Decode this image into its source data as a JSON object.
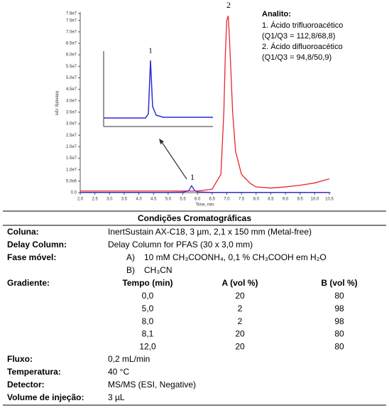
{
  "chart_data": {
    "type": "line",
    "y_label": "Intensity, cps",
    "x_label": "Time, min",
    "x": [
      2.0,
      2.5,
      3.0,
      3.5,
      4.0,
      4.5,
      5.0,
      5.5,
      5.7,
      5.8,
      5.9,
      6.0,
      6.5,
      6.8,
      6.9,
      6.95,
      7.0,
      7.05,
      7.1,
      7.2,
      7.3,
      7.5,
      7.8,
      8.0,
      8.5,
      9.0,
      9.5,
      10.0,
      10.5
    ],
    "series": [
      {
        "color": "#e8262c",
        "values": [
          700000,
          700000,
          700000,
          700000,
          700000,
          700000,
          700000,
          700000,
          700000,
          700000,
          700000,
          700000,
          1500000,
          8000000,
          35000000,
          60000000,
          75000000,
          77000000,
          65000000,
          35000000,
          18000000,
          8000000,
          4000000,
          2500000,
          2000000,
          2500000,
          3200000,
          4200000,
          6000000
        ]
      },
      {
        "color": "#2b2bd8",
        "values": [
          100000,
          100000,
          100000,
          100000,
          100000,
          100000,
          100000,
          200000,
          800000,
          3000000,
          1000000,
          300000,
          100000,
          100000,
          100000,
          100000,
          100000,
          100000,
          100000,
          100000,
          100000,
          100000,
          100000,
          100000,
          100000,
          100000,
          100000,
          100000,
          100000
        ]
      }
    ],
    "xlim": [
      2.0,
      10.5
    ],
    "ylim": [
      0,
      78000000
    ],
    "xticks": [
      {
        "value": 2.0,
        "label": "2.0"
      },
      2.5,
      {
        "value": 3.0,
        "label": "3.0"
      },
      3.5,
      {
        "value": 4.0,
        "label": "4.0"
      },
      4.5,
      {
        "value": 5.0,
        "label": "5.0"
      },
      5.5,
      {
        "value": 6.0,
        "label": "6.0"
      },
      6.5,
      {
        "value": 7.0,
        "label": "7.0"
      },
      7.5,
      {
        "value": 8.0,
        "label": "8.0"
      },
      8.5,
      {
        "value": 9.0,
        "label": "9.0"
      },
      9.5,
      {
        "value": 10.0,
        "label": "10.0"
      },
      10.5
    ],
    "yticks": [
      {
        "value": 0,
        "label": "0.0"
      },
      {
        "value": 5000000,
        "label": "5.0e6"
      },
      {
        "value": 10000000,
        "label": "1.0e7"
      },
      {
        "value": 15000000,
        "label": "1.5e7"
      },
      {
        "value": 20000000,
        "label": "2.0e7"
      },
      {
        "value": 25000000,
        "label": "2.5e7"
      },
      {
        "value": 30000000,
        "label": "3.0e7"
      },
      {
        "value": 35000000,
        "label": "3.5e7"
      },
      {
        "value": 40000000,
        "label": "4.0e7"
      },
      {
        "value": 45000000,
        "label": "4.5e7"
      },
      {
        "value": 50000000,
        "label": "5.0e7"
      },
      {
        "value": 55000000,
        "label": "5.5e7"
      },
      {
        "value": 60000000,
        "label": "6.0e7"
      },
      {
        "value": 65000000,
        "label": "6.5e7"
      },
      {
        "value": 70000000,
        "label": "7.0e7"
      },
      {
        "value": 75000000,
        "label": "7.5e7"
      },
      {
        "value": 78000000,
        "label": "7.8e7"
      }
    ],
    "peak_labels": [
      "1",
      "2"
    ],
    "inset_label": "1",
    "analytes_title": "Analito:",
    "analytes": [
      "1. Ácido trifluoroacético",
      "(Q1/Q3 = 112,8/68,8)",
      "2. Ácido difluoroacético",
      "(Q1/Q3 = 94,8/50,9)"
    ]
  },
  "table": {
    "title": "Condições Cromatográficas",
    "rows": [
      [
        "Coluna:",
        "InertSustain AX-C18, 3 µm, 2,1 x 150 mm (Metal-free)"
      ],
      [
        "Delay Column:",
        "Delay Column for PFAS (30 x 3,0 mm)"
      ]
    ],
    "mobile_phase": {
      "label": "Fase móvel:",
      "items": [
        [
          "A)",
          "10 mM CH₃COONH₄, 0,1 % CH₃COOH em H₂O"
        ],
        [
          "B)",
          "CH₃CN"
        ]
      ]
    },
    "gradient": {
      "label": "Gradiente:",
      "header": [
        "Tempo (min)",
        "A (vol %)",
        "B (vol %)"
      ],
      "rows": [
        [
          "0,0",
          "20",
          "80"
        ],
        [
          "5,0",
          "2",
          "98"
        ],
        [
          "8,0",
          "2",
          "98"
        ],
        [
          "8,1",
          "20",
          "80"
        ],
        [
          "12,0",
          "20",
          "80"
        ]
      ]
    },
    "rows_after": [
      [
        "Fluxo:",
        "0,2 mL/min"
      ],
      [
        "Temperatura:",
        "40 °C"
      ],
      [
        "Detector:",
        "MS/MS (ESI, Negative)"
      ],
      [
        "Volume de injeção:",
        "3 µL"
      ]
    ]
  }
}
